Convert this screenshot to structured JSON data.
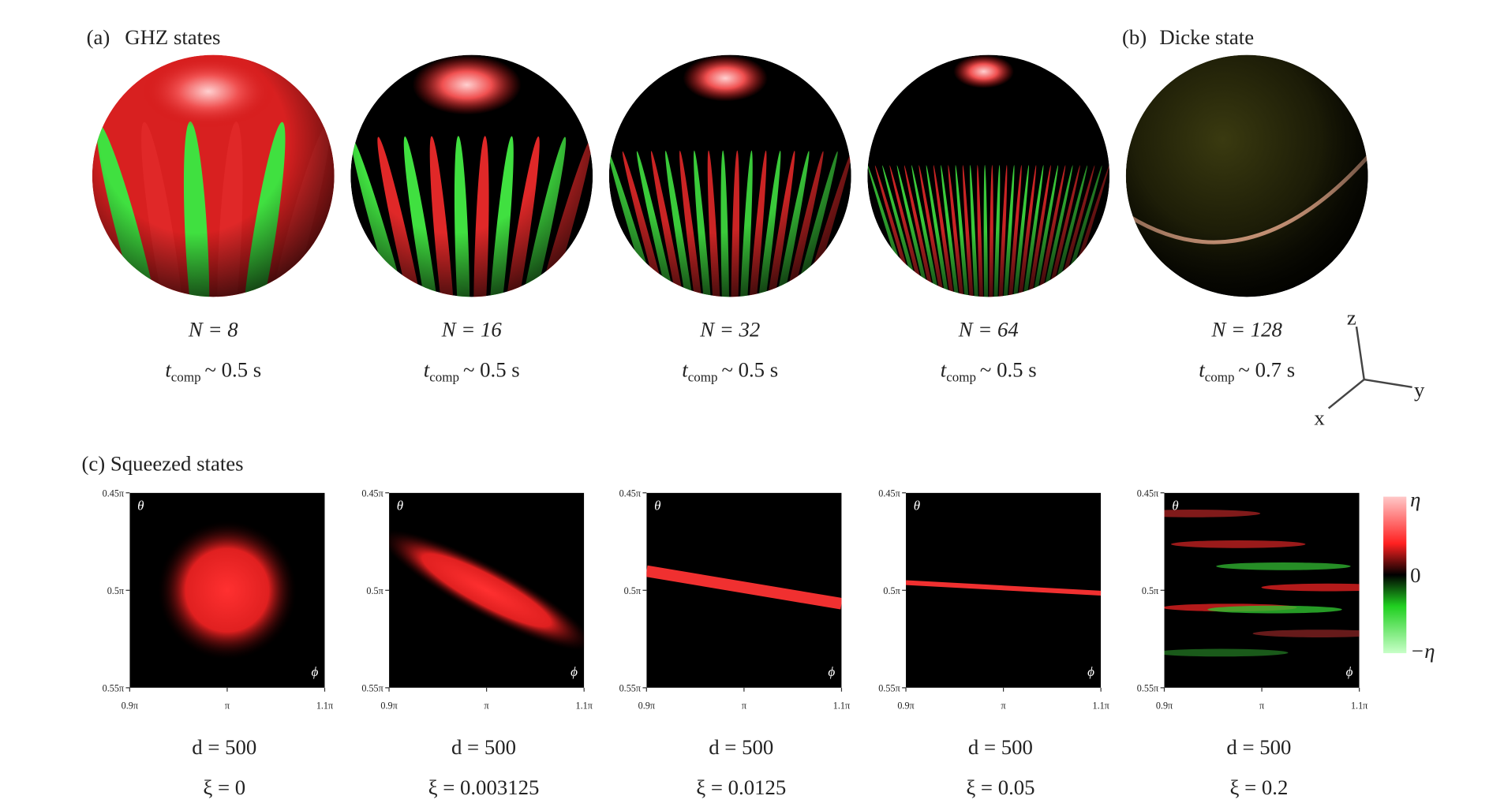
{
  "panel_a": {
    "label": "(a)",
    "title": "GHZ states",
    "spheres": [
      {
        "n_label": "N = 8",
        "time_symbol": "t",
        "time_subscript": "comp",
        "time_value": "~ 0.5 s"
      },
      {
        "n_label": "N = 16",
        "time_symbol": "t",
        "time_subscript": "comp",
        "time_value": "~ 0.5 s"
      },
      {
        "n_label": "N = 32",
        "time_symbol": "t",
        "time_subscript": "comp",
        "time_value": "~ 0.5 s"
      },
      {
        "n_label": "N = 64",
        "time_symbol": "t",
        "time_subscript": "comp",
        "time_value": "~ 0.5 s"
      }
    ]
  },
  "panel_b": {
    "label": "(b)",
    "title": "Dicke state",
    "sphere": {
      "n_label": "N = 128",
      "time_symbol": "t",
      "time_subscript": "comp",
      "time_value": "~ 0.7 s"
    }
  },
  "axes_icon": {
    "z": "z",
    "y": "y",
    "x": "x"
  },
  "panel_c": {
    "title": "(c) Squeezed states",
    "plots": [
      {
        "y_ticks": [
          "0.45π",
          "0.5π",
          "0.55π"
        ],
        "x_ticks": [
          "0.9π",
          "π",
          "1.1π"
        ],
        "y_axis": "θ",
        "x_axis": "ϕ",
        "d_label": "d = 500",
        "xi_label": "ξ = 0"
      },
      {
        "y_ticks": [
          "0.45π",
          "0.5π",
          "0.55π"
        ],
        "x_ticks": [
          "0.9π",
          "π",
          "1.1π"
        ],
        "y_axis": "θ",
        "x_axis": "ϕ",
        "d_label": "d = 500",
        "xi_label": "ξ = 0.003125"
      },
      {
        "y_ticks": [
          "0.45π",
          "0.5π",
          "0.55π"
        ],
        "x_ticks": [
          "0.9π",
          "π",
          "1.1π"
        ],
        "y_axis": "θ",
        "x_axis": "ϕ",
        "d_label": "d = 500",
        "xi_label": "ξ = 0.0125"
      },
      {
        "y_ticks": [
          "0.45π",
          "0.5π",
          "0.55π"
        ],
        "x_ticks": [
          "0.9π",
          "π",
          "1.1π"
        ],
        "y_axis": "θ",
        "x_axis": "ϕ",
        "d_label": "d = 500",
        "xi_label": "ξ = 0.05"
      },
      {
        "y_ticks": [
          "0.45π",
          "0.5π",
          "0.55π"
        ],
        "x_ticks": [
          "0.9π",
          "π",
          "1.1π"
        ],
        "y_axis": "θ",
        "x_axis": "ϕ",
        "d_label": "d = 500",
        "xi_label": "ξ = 0.2"
      }
    ],
    "colorbar": {
      "top": "η",
      "middle": "0",
      "bottom": "−η"
    }
  }
}
